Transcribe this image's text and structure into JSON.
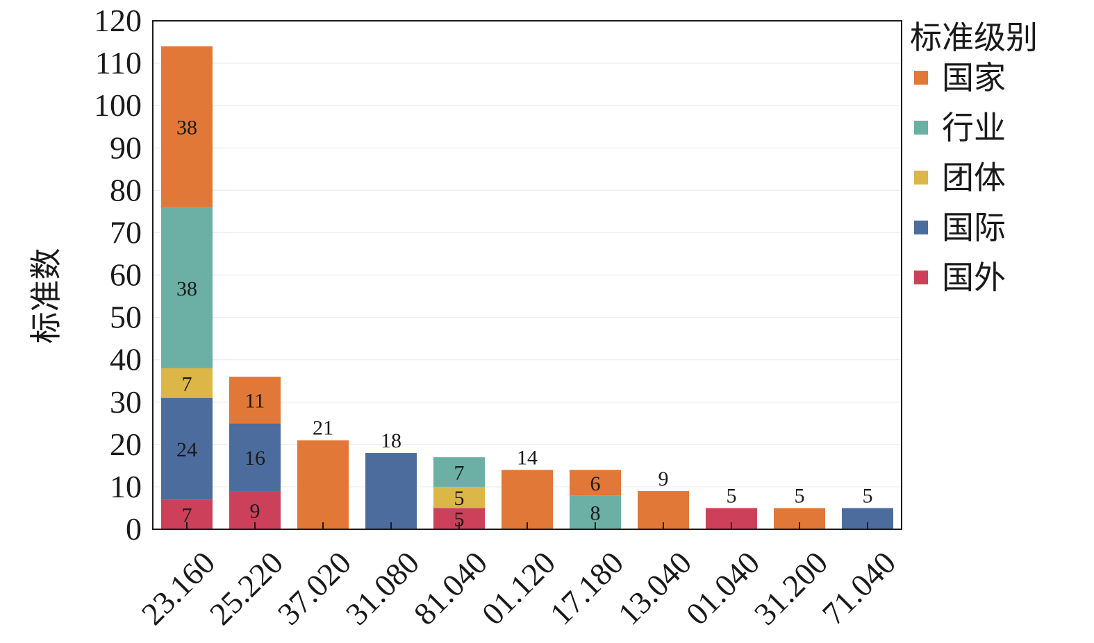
{
  "chart_data": {
    "type": "bar",
    "stacked": true,
    "ylabel": "标准数",
    "ylim": [
      0,
      120
    ],
    "yticks": [
      0,
      10,
      20,
      30,
      40,
      50,
      60,
      70,
      80,
      90,
      100,
      110,
      120
    ],
    "grid": true,
    "categories": [
      "23.160",
      "25.220",
      "37.020",
      "31.080",
      "81.040",
      "01.120",
      "17.180",
      "13.040",
      "01.040",
      "31.200",
      "71.040"
    ],
    "legend": {
      "title": "标准级别",
      "placement": "right"
    },
    "series": [
      {
        "name": "国外",
        "color": "#cc4159",
        "values": [
          7,
          9,
          0,
          0,
          5,
          0,
          0,
          0,
          5,
          0,
          0
        ]
      },
      {
        "name": "国际",
        "color": "#4c6c9d",
        "values": [
          24,
          16,
          0,
          18,
          0,
          0,
          0,
          0,
          0,
          0,
          5
        ]
      },
      {
        "name": "团体",
        "color": "#dcb646",
        "values": [
          7,
          0,
          0,
          0,
          5,
          0,
          0,
          0,
          0,
          0,
          0
        ]
      },
      {
        "name": "行业",
        "color": "#6cafa4",
        "values": [
          38,
          0,
          0,
          0,
          7,
          0,
          8,
          0,
          0,
          0,
          0
        ]
      },
      {
        "name": "国家",
        "color": "#e17837",
        "values": [
          38,
          11,
          21,
          0,
          0,
          14,
          6,
          9,
          0,
          5,
          0
        ]
      }
    ],
    "legend_order": [
      "国家",
      "行业",
      "团体",
      "国际",
      "国外"
    ]
  }
}
